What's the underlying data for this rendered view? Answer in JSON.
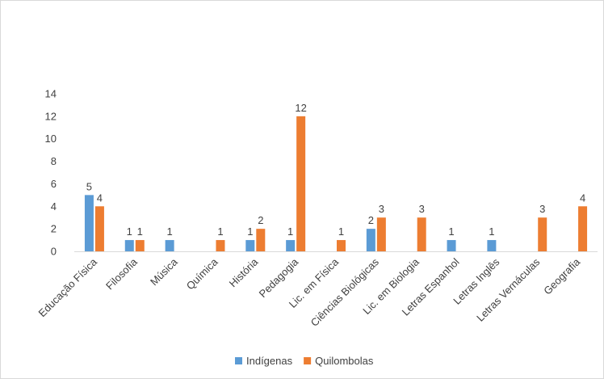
{
  "chart_data": {
    "type": "bar",
    "categories": [
      "Educação Física",
      "Filosofia",
      "Música",
      "Química",
      "História",
      "Pedagogia",
      "Lic. em Física",
      "Ciências Biológicas",
      "Lic. em Biologia",
      "Letras Espanhol",
      "Letras Inglês",
      "Letras Vernáculas",
      "Geografia"
    ],
    "series": [
      {
        "name": "Indígenas",
        "color": "#5B9BD5",
        "values": [
          5,
          1,
          1,
          null,
          1,
          1,
          null,
          2,
          null,
          1,
          1,
          null,
          null
        ]
      },
      {
        "name": "Quilombolas",
        "color": "#ED7D31",
        "values": [
          4,
          1,
          null,
          1,
          2,
          12,
          1,
          3,
          3,
          null,
          null,
          3,
          4
        ]
      }
    ],
    "ylim": [
      0,
      14
    ],
    "yticks": [
      0,
      2,
      4,
      6,
      8,
      10,
      12,
      14
    ],
    "grid": false,
    "legend": "bottom-center",
    "title": "",
    "xlabel": "",
    "ylabel": ""
  }
}
